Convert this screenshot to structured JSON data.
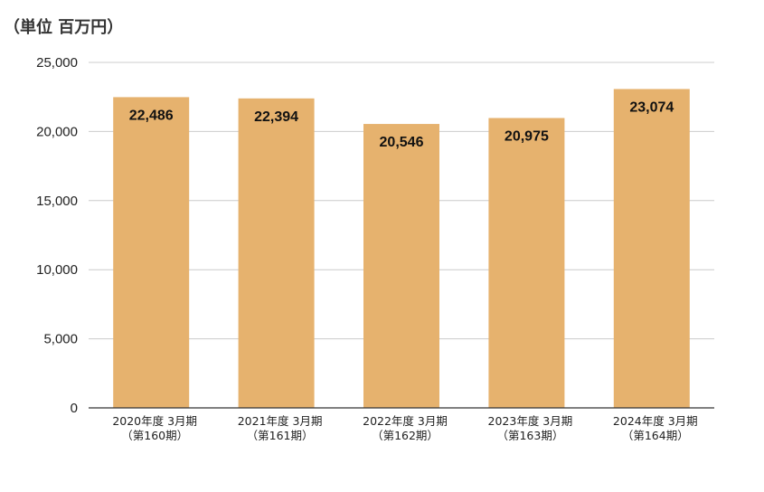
{
  "chart_data": {
    "type": "bar",
    "unit_label": "（単位 百万円）",
    "categories": [
      [
        "2020年度 3月期",
        "（第160期）"
      ],
      [
        "2021年度 3月期",
        "（第161期）"
      ],
      [
        "2022年度 3月期",
        "（第162期）"
      ],
      [
        "2023年度 3月期",
        "（第163期）"
      ],
      [
        "2024年度 3月期",
        "（第164期）"
      ]
    ],
    "values": [
      22486,
      22394,
      20546,
      20975,
      23074
    ],
    "data_labels": [
      "22,486",
      "22,394",
      "20,546",
      "20,975",
      "23,074"
    ],
    "yticks": [
      0,
      5000,
      10000,
      15000,
      20000,
      25000
    ],
    "ytick_labels": [
      "0",
      "5,000",
      "10,000",
      "15,000",
      "20,000",
      "25,000"
    ],
    "ylim": [
      0,
      25000
    ],
    "grid": true,
    "legend": "none",
    "bar_color": "#E6B26E",
    "grid_color": "#CCCCCC",
    "axis_color": "#333333"
  }
}
